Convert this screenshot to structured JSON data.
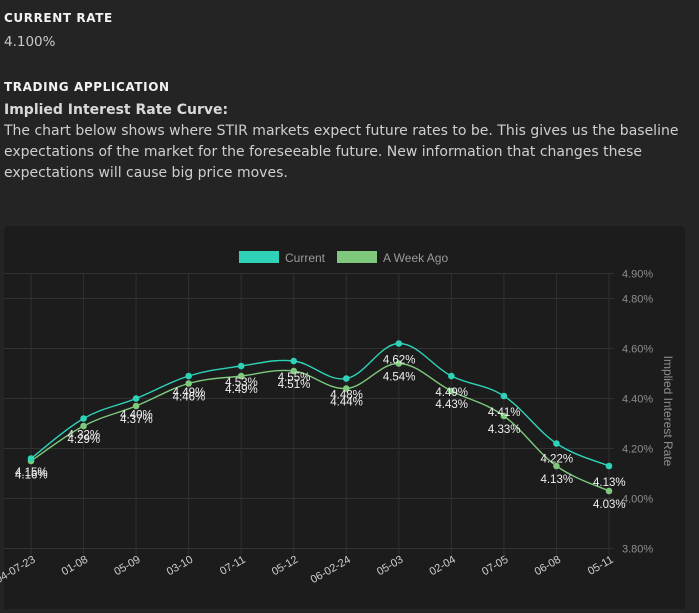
{
  "current_rate": {
    "heading": "CURRENT RATE",
    "value": "4.100%"
  },
  "trading_application": {
    "heading": "TRADING APPLICATION",
    "subheading": "Implied Interest Rate Curve:",
    "description": "The chart below shows where STIR markets expect future rates to be. This gives us the baseline expectations of the market for the foreseeable future. New information that changes these expectations will cause big price moves."
  },
  "chart_data": {
    "type": "line",
    "categories": [
      "04-07-23",
      "01-08",
      "05-09",
      "03-10",
      "07-11",
      "05-12",
      "06-02-24",
      "05-03",
      "02-04",
      "07-05",
      "06-08",
      "05-11"
    ],
    "series": [
      {
        "name": "Current",
        "color": "#2ed3b7",
        "values": [
          4.16,
          4.32,
          4.4,
          4.49,
          4.53,
          4.55,
          4.48,
          4.62,
          4.49,
          4.41,
          4.22,
          4.13
        ],
        "labels": [
          "4.16%",
          "4.32%",
          "4.40%",
          "4.49%",
          "4.53%",
          "4.55%",
          "4.48%",
          "4.62%",
          "4.49%",
          "4.41%",
          "4.22%",
          "4.13%"
        ]
      },
      {
        "name": "A Week Ago",
        "color": "#7ec97c",
        "values": [
          4.15,
          4.29,
          4.37,
          4.46,
          4.49,
          4.51,
          4.44,
          4.54,
          4.43,
          4.33,
          4.13,
          4.03
        ],
        "labels": [
          "4.15%",
          "4.29%",
          "4.37%",
          "4.46%",
          "4.49%",
          "4.51%",
          "4.44%",
          "4.54%",
          "4.43%",
          "4.33%",
          "4.13%",
          "4.03%"
        ]
      }
    ],
    "y_axis": {
      "label": "Implied Interest Rate",
      "position": "right",
      "ylim": [
        3.8,
        4.9
      ],
      "ticks": [
        "3.80%",
        "4.00%",
        "4.20%",
        "4.40%",
        "4.60%",
        "4.80%",
        "4.90%"
      ]
    },
    "legend": "top-center",
    "grid": true
  }
}
